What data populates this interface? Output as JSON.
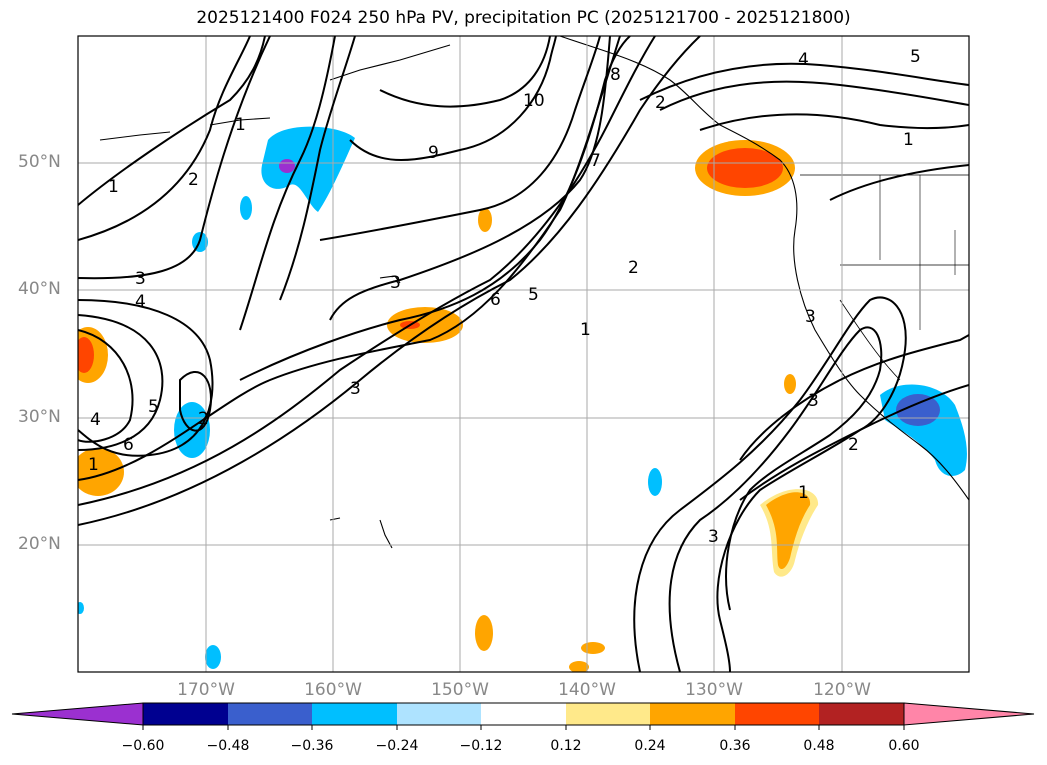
{
  "title": "2025121400 F024 250 hPa PV, precipitation PC (2025121700 - 2025121800)",
  "latitude_labels": [
    "50°N",
    "40°N",
    "30°N",
    "20°N"
  ],
  "longitude_labels": [
    "170°W",
    "160°W",
    "150°W",
    "140°W",
    "130°W",
    "120°W"
  ],
  "colorbar": {
    "ticks": [
      "−0.60",
      "−0.48",
      "−0.36",
      "−0.24",
      "−0.12",
      "0.12",
      "0.24",
      "0.36",
      "0.48",
      "0.60"
    ],
    "colors": [
      "#9b30d0",
      "#000090",
      "#3a5fcd",
      "#00bfff",
      "#aee3ff",
      "#ffffff",
      "#ffe98a",
      "#ffa500",
      "#ff4500",
      "#b22222",
      "#ff85a8"
    ]
  },
  "contour_labels": [
    "1",
    "2",
    "3",
    "4",
    "5",
    "6",
    "7",
    "8",
    "9",
    "10",
    "1",
    "2",
    "3",
    "4",
    "5",
    "6",
    "1",
    "2",
    "3",
    "4",
    "5",
    "3",
    "1",
    "2",
    "3",
    "1",
    "3",
    "2",
    "1"
  ],
  "colors": {
    "contour": "#000000",
    "grid": "#aaaaaa",
    "coast": "#000000"
  }
}
